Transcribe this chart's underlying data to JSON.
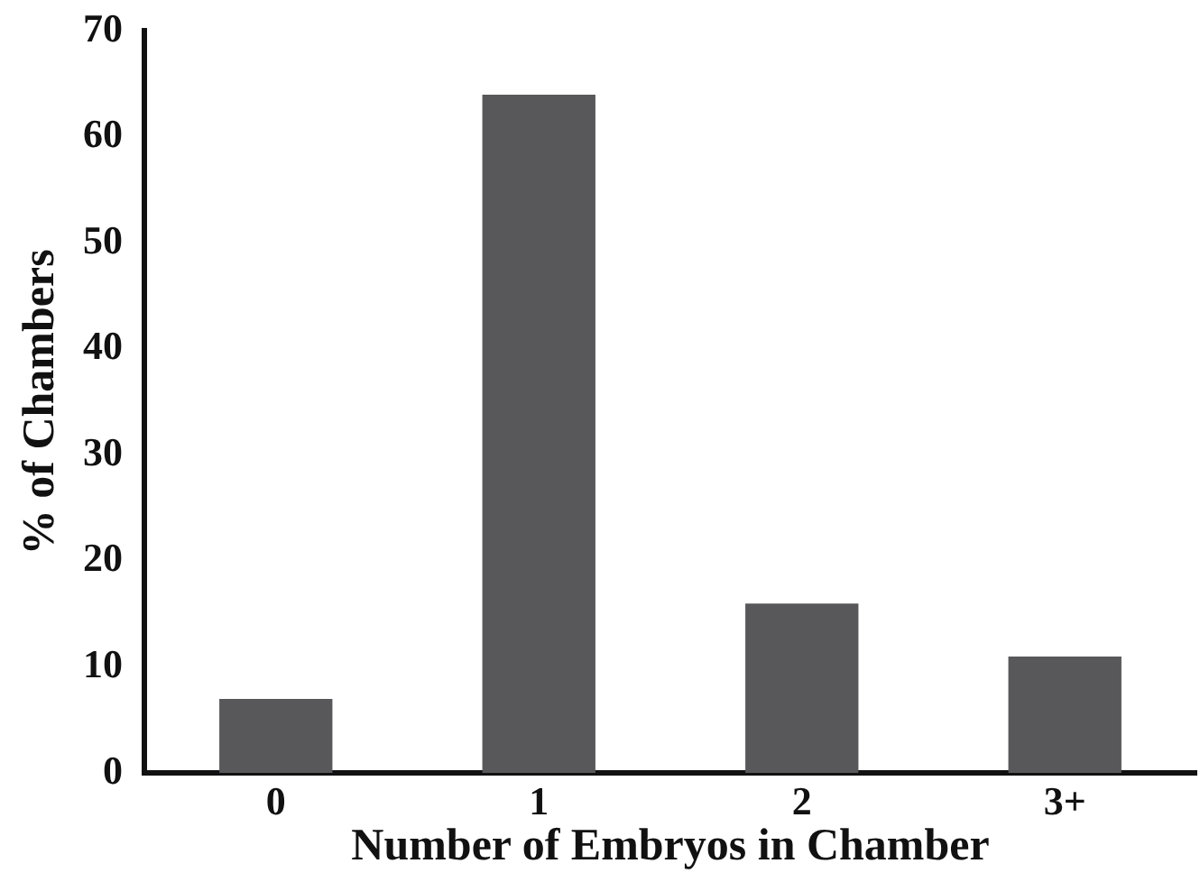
{
  "chart_data": {
    "type": "bar",
    "xlabel": "Number of Embryos in Chamber",
    "ylabel": "% of Chambers",
    "categories": [
      "0",
      "1",
      "2",
      "3+"
    ],
    "values": [
      7,
      64,
      16,
      11
    ],
    "color": "#58585a",
    "ylim": [
      0,
      70
    ],
    "yticks": [
      0,
      10,
      20,
      30,
      40,
      50,
      60,
      70
    ],
    "grid": false,
    "legend": false
  }
}
